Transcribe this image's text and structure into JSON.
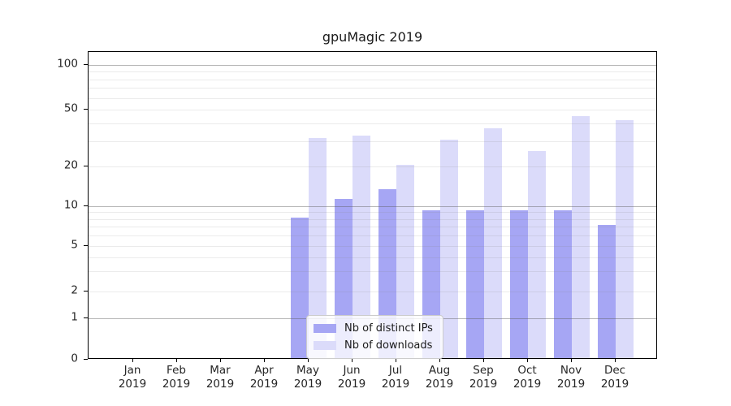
{
  "title": "gpuMagic 2019",
  "chart_data": {
    "type": "bar",
    "title": "gpuMagic 2019",
    "categories": [
      "Jan 2019",
      "Feb 2019",
      "Mar 2019",
      "Apr 2019",
      "May 2019",
      "Jun 2019",
      "Jul 2019",
      "Aug 2019",
      "Sep 2019",
      "Oct 2019",
      "Nov 2019",
      "Dec 2019"
    ],
    "series": [
      {
        "name": "Nb of distinct IPs",
        "color": "#a6a6f4",
        "values": [
          0,
          0,
          0,
          0,
          8,
          11,
          13,
          9,
          9,
          9,
          9,
          7
        ]
      },
      {
        "name": "Nb of downloads",
        "color": "#dbdbfa",
        "values": [
          0,
          0,
          0,
          0,
          31,
          32,
          20,
          30,
          36,
          25,
          44,
          41
        ]
      }
    ],
    "yscale": "log above 1, linear 0-1 (symlog-like)",
    "ylim": [
      0,
      130
    ],
    "grid": "horizontal, major and minor",
    "legend_position": "inside axes, lower center"
  },
  "y_axis": {
    "ticks": [
      {
        "value": 100,
        "label": "100"
      },
      {
        "value": 50,
        "label": "50"
      },
      {
        "value": 20,
        "label": "20"
      },
      {
        "value": 10,
        "label": "10"
      },
      {
        "value": 5,
        "label": "5"
      },
      {
        "value": 2,
        "label": "2"
      },
      {
        "value": 1,
        "label": "1"
      },
      {
        "value": 0,
        "label": "0"
      }
    ],
    "major_gridline_values": [
      1,
      10,
      100
    ],
    "minor_gridline_values": [
      2,
      3,
      4,
      5,
      6,
      7,
      8,
      9,
      20,
      30,
      40,
      50,
      60,
      70,
      80,
      90
    ]
  },
  "colors": {
    "distinct_ips": "#a6a6f4",
    "downloads": "#dbdbfa",
    "axis": "#000000",
    "major_grid": "#8f8f8f",
    "minor_grid": "#e6e6e6",
    "legend_border": "#cccccc"
  }
}
